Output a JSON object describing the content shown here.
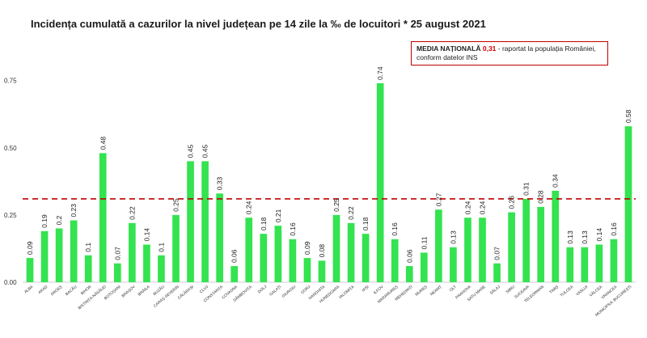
{
  "chart_data": {
    "type": "bar",
    "title": "Incidența cumulată a cazurilor la nivel județean pe 14 zile la ‰ de locuitori * 25 august 2021",
    "xlabel": "",
    "ylabel": "",
    "ylim": [
      0,
      0.8
    ],
    "yticks": [
      0.0,
      0.25,
      0.5,
      0.75
    ],
    "ytick_labels": [
      "0.00",
      "0.25",
      "0.50",
      "0.75"
    ],
    "bar_color": "#33e34f",
    "reference_line": {
      "value": 0.31,
      "color": "#c00000",
      "style": "dashed"
    },
    "legend": {
      "label": "MEDIA NAȚIONALĂ",
      "value": "0,31",
      "rest_line1": " - raportat la populația României,",
      "line2": "conform datelor INS"
    },
    "categories": [
      "ALBA",
      "ARAD",
      "ARGEȘ",
      "BACĂU",
      "BIHOR",
      "BISTRIȚA-NĂSĂUD",
      "BOTOȘANI",
      "BRAȘOV",
      "BRĂILA",
      "BUZĂU",
      "CARAȘ-SEVERIN",
      "CĂLĂRAȘI",
      "CLUJ",
      "CONSTANȚA",
      "COVASNA",
      "DÂMBOVIȚA",
      "DOLJ",
      "GALAȚI",
      "GIURGIU",
      "GORJ",
      "HARGHITA",
      "HUNEDOARA",
      "IALOMIȚA",
      "IAȘI",
      "ILFOV",
      "MARAMUREȘ",
      "MEHEDINȚI",
      "MUREȘ",
      "NEAMȚ",
      "OLT",
      "PRAHOVA",
      "SATU MARE",
      "SĂLAJ",
      "SIBIU",
      "SUCEAVA",
      "TELEORMAN",
      "TIMIȘ",
      "TULCEA",
      "VASLUI",
      "VÂLCEA",
      "VRANCEA",
      "MUNICIPIUL BUCUREȘTI"
    ],
    "values": [
      0.09,
      0.19,
      0.2,
      0.23,
      0.1,
      0.48,
      0.07,
      0.22,
      0.14,
      0.1,
      0.25,
      0.45,
      0.45,
      0.33,
      0.06,
      0.24,
      0.18,
      0.21,
      0.16,
      0.09,
      0.08,
      0.25,
      0.22,
      0.18,
      0.74,
      0.16,
      0.06,
      0.11,
      0.27,
      0.13,
      0.24,
      0.24,
      0.07,
      0.26,
      0.31,
      0.28,
      0.34,
      0.13,
      0.13,
      0.14,
      0.16,
      0.58
    ],
    "value_labels": [
      "0.09",
      "0.19",
      "0.2",
      "0.23",
      "0.1",
      "0.48",
      "0.07",
      "0.22",
      "0.14",
      "0.1",
      "0.25",
      "0.45",
      "0.45",
      "0.33",
      "0.06",
      "0.24",
      "0.18",
      "0.21",
      "0.16",
      "0.09",
      "0.08",
      "0.25",
      "0.22",
      "0.18",
      "0.74",
      "0.16",
      "0.06",
      "0.11",
      "0.27",
      "0.13",
      "0.24",
      "0.24",
      "0.07",
      "0.26",
      "0.31",
      "0.28",
      "0.34",
      "0.13",
      "0.13",
      "0.14",
      "0.16",
      "0.58"
    ]
  }
}
